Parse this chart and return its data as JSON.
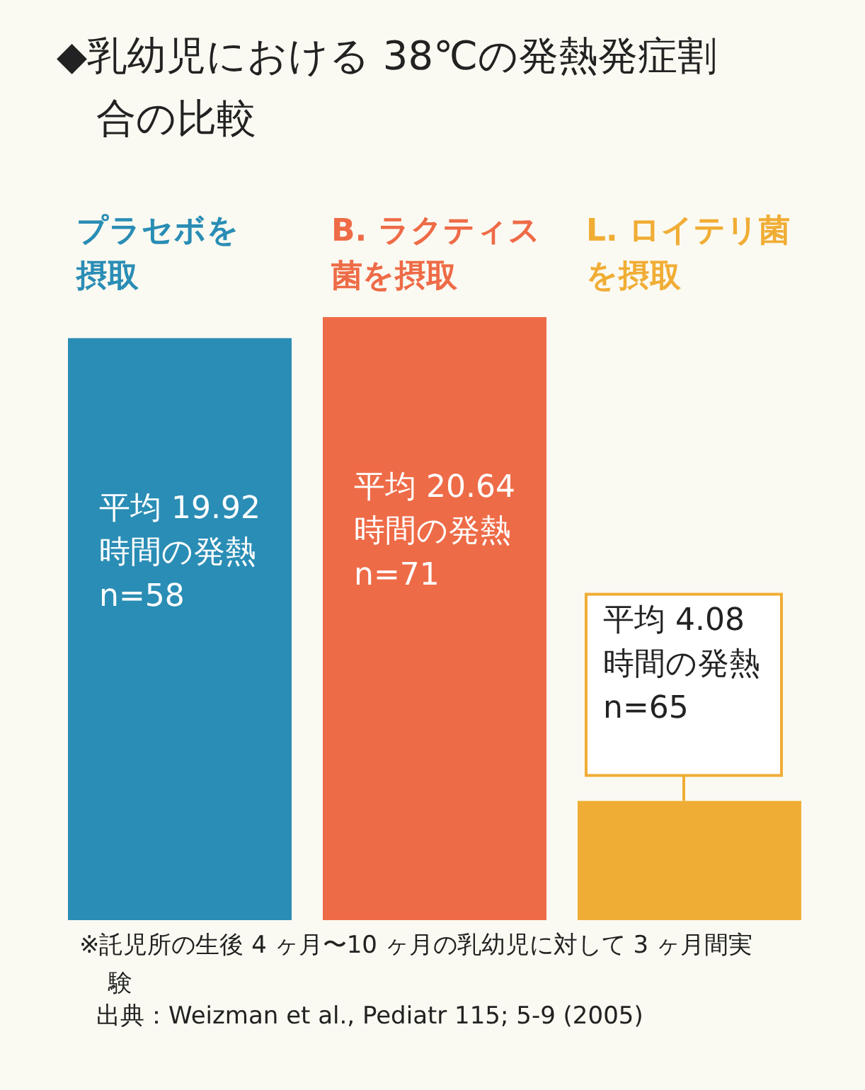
{
  "chart_data": {
    "type": "bar",
    "title": "◆乳幼児における 38℃の発熱発症割合の比較",
    "categories": [
      "プラセボを摂取",
      "B. ラクティス菌を摂取",
      "L. ロイテリ菌を摂取"
    ],
    "values": [
      19.92,
      20.64,
      4.08
    ],
    "colors": [
      "#2a8db5",
      "#ee6b47",
      "#f0ad35"
    ],
    "value_labels": [
      "平均 19.92 時間の発熱 n=58",
      "平均 20.64 時間の発熱 n=71",
      "平均 4.08 時間の発熱 n=65"
    ],
    "annotations": [
      "※託児所の生後 4 ヶ月〜10 ヶ月の乳幼児に対して 3 ヶ月間実験",
      "出典：Weizman et al., Pediatr 115; 5-9 (2005)"
    ]
  }
}
